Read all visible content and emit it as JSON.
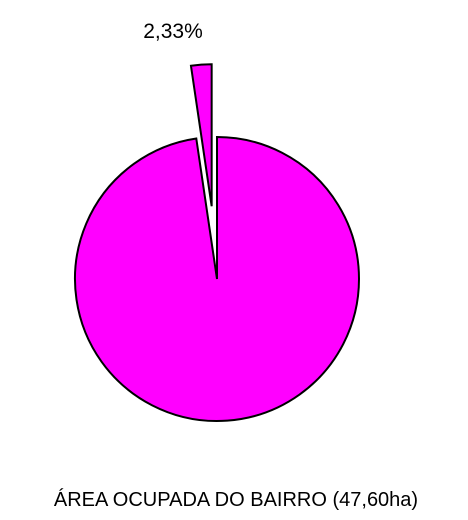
{
  "chart_data": {
    "type": "pie",
    "slices": [
      {
        "label": "",
        "value": 97.67,
        "color": "#ff00ff"
      },
      {
        "label": "2,33%",
        "value": 2.33,
        "color": "#ff00ff",
        "exploded": true
      }
    ],
    "legend": "ÁREA OCUPADA DO BAIRRO (47,60ha)",
    "legend_placement": "bottom",
    "start_angle_deg": 0,
    "direction": "counterclockwise"
  }
}
